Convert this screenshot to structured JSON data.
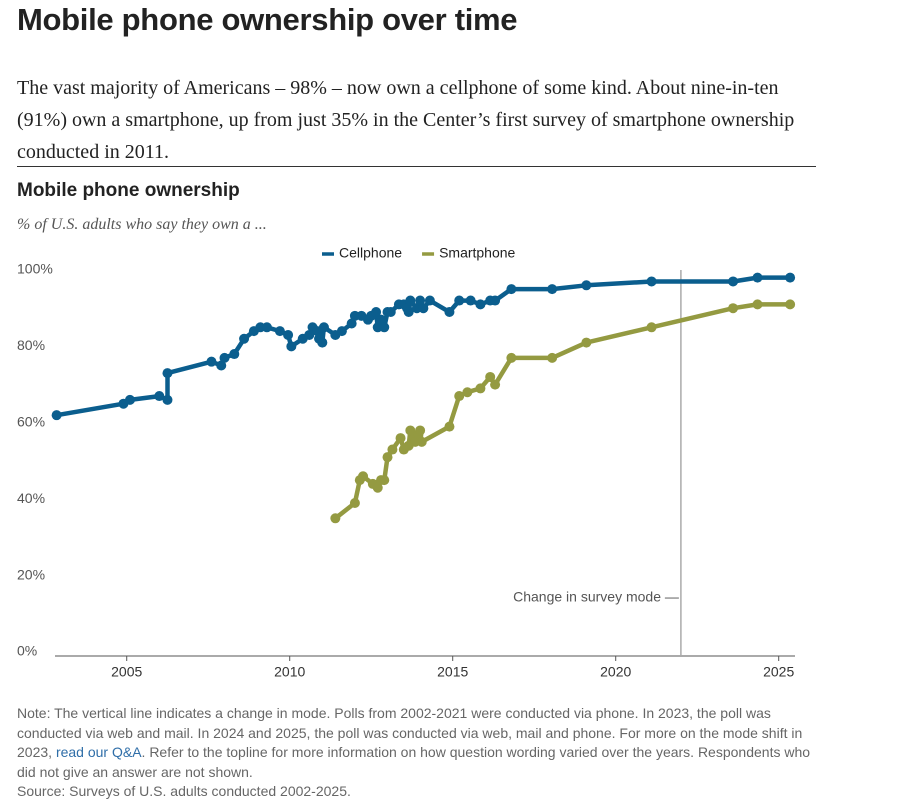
{
  "header": {
    "title": "Mobile phone ownership over time",
    "description": "The vast majority of Americans – 98% – now own a cellphone of some kind. About nine-in-ten (91%) own a smartphone, up from just 35% in the Center’s first survey of smartphone ownership conducted in 2011."
  },
  "chart_data": {
    "type": "line",
    "title": "Mobile phone ownership",
    "subtitle": "% of U.S. adults who say they own a ...",
    "series": [
      {
        "name": "Cellphone",
        "color": "#0b5e8e",
        "x": [
          2002.85,
          2004.9,
          2005.1,
          2006.0,
          2006.25,
          2006.25,
          2007.6,
          2007.9,
          2008.0,
          2008.3,
          2008.6,
          2008.9,
          2009.1,
          2009.3,
          2009.7,
          2009.95,
          2010.05,
          2010.4,
          2010.6,
          2010.7,
          2010.85,
          2010.9,
          2011.0,
          2011.05,
          2011.4,
          2011.6,
          2011.9,
          2012.0,
          2012.2,
          2012.4,
          2012.5,
          2012.65,
          2012.7,
          2012.8,
          2012.9,
          2013.0,
          2013.1,
          2013.35,
          2013.5,
          2013.6,
          2013.65,
          2013.7,
          2013.9,
          2014.0,
          2014.1,
          2014.3,
          2014.9,
          2015.2,
          2015.55,
          2015.85,
          2016.15,
          2016.3,
          2016.8,
          2018.05,
          2019.1,
          2021.1,
          2023.6,
          2024.35,
          2025.35
        ],
        "values": [
          62,
          65,
          66,
          67,
          66,
          73,
          76,
          75,
          77,
          78,
          82,
          84,
          85,
          85,
          84,
          83,
          80,
          82,
          83,
          85,
          84,
          82,
          81,
          85,
          83,
          84,
          86,
          88,
          88,
          87,
          88,
          89,
          85,
          87,
          85,
          89,
          89,
          91,
          91,
          90,
          89,
          92,
          90,
          92,
          90,
          92,
          89,
          92,
          92,
          91,
          92,
          92,
          95,
          95,
          96,
          97,
          97,
          98,
          98
        ]
      },
      {
        "name": "Smartphone",
        "color": "#949a41",
        "x": [
          2011.4,
          2012.0,
          2012.15,
          2012.25,
          2012.55,
          2012.7,
          2012.8,
          2012.9,
          2013.0,
          2013.15,
          2013.4,
          2013.5,
          2013.65,
          2013.7,
          2013.85,
          2013.95,
          2014.0,
          2014.05,
          2014.9,
          2015.2,
          2015.45,
          2015.85,
          2016.15,
          2016.3,
          2016.8,
          2018.05,
          2019.1,
          2021.1,
          2023.6,
          2024.35,
          2025.35
        ],
        "values": [
          35,
          39,
          45,
          46,
          44,
          43,
          45,
          45,
          51,
          53,
          56,
          53,
          54,
          58,
          55,
          57,
          58,
          55,
          59,
          67,
          68,
          69,
          72,
          70,
          77,
          77,
          81,
          85,
          90,
          91,
          91
        ]
      }
    ],
    "xlim": [
      2002.8,
      2025.5
    ],
    "xticks": [
      2005,
      2010,
      2015,
      2020,
      2025
    ],
    "ylim": [
      0,
      100
    ],
    "yticks": [
      {
        "value": 0,
        "label": "0%"
      },
      {
        "value": 20,
        "label": "20%"
      },
      {
        "value": 40,
        "label": "40%"
      },
      {
        "value": 60,
        "label": "60%"
      },
      {
        "value": 80,
        "label": "80%"
      },
      {
        "value": 100,
        "label": "100%"
      }
    ],
    "grid": false,
    "legend": "top",
    "annotations": [
      {
        "text": "Change in survey mode —",
        "x": 2022.0
      }
    ]
  },
  "footer": {
    "note_before": "Note: The vertical line indicates a change in mode. Polls from 2002-2021 were conducted via phone. In 2023, the poll was conducted via web and mail. In 2024 and 2025, the poll was conducted via web, mail and phone. For more on the mode shift in 2023, ",
    "note_link": "read our Q&A",
    "note_after": ". Refer to the topline for more information on how question wording varied over the years. Respondents who did not give an answer are not shown.",
    "source": "Source: Surveys of U.S. adults conducted 2002-2025."
  }
}
